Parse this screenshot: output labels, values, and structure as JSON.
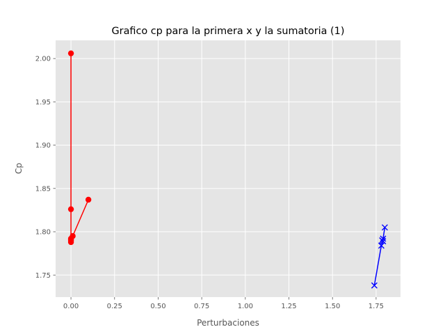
{
  "chart_data": {
    "type": "line",
    "title": "Grafico cp para la primera x y la sumatoria (1)",
    "xlabel": "Perturbaciones",
    "ylabel": "Cp",
    "xlim": [
      -0.088,
      1.89
    ],
    "ylim": [
      1.7245,
      2.021
    ],
    "xticks": [
      0.0,
      0.25,
      0.5,
      0.75,
      1.0,
      1.25,
      1.5,
      1.75
    ],
    "xtick_labels": [
      "0.00",
      "0.25",
      "0.50",
      "0.75",
      "1.00",
      "1.25",
      "1.50",
      "1.75"
    ],
    "yticks": [
      1.75,
      1.8,
      1.85,
      1.9,
      1.95,
      2.0
    ],
    "ytick_labels": [
      "1.75",
      "1.80",
      "1.85",
      "1.90",
      "1.95",
      "2.00"
    ],
    "grid": true,
    "style": "ggplot",
    "series": [
      {
        "color": "#ff0000",
        "marker": "circle",
        "x": [
          0.0,
          0.0,
          0.0,
          0.0,
          0.0,
          0.0,
          0.01,
          0.1
        ],
        "y": [
          2.006,
          1.826,
          1.791,
          1.788,
          1.79,
          1.792,
          1.795,
          1.837
        ]
      },
      {
        "color": "#0000ff",
        "marker": "x",
        "x": [
          1.74,
          1.78,
          1.79,
          1.785,
          1.79,
          1.8
        ],
        "y": [
          1.738,
          1.784,
          1.789,
          1.79,
          1.792,
          1.805
        ]
      }
    ]
  }
}
